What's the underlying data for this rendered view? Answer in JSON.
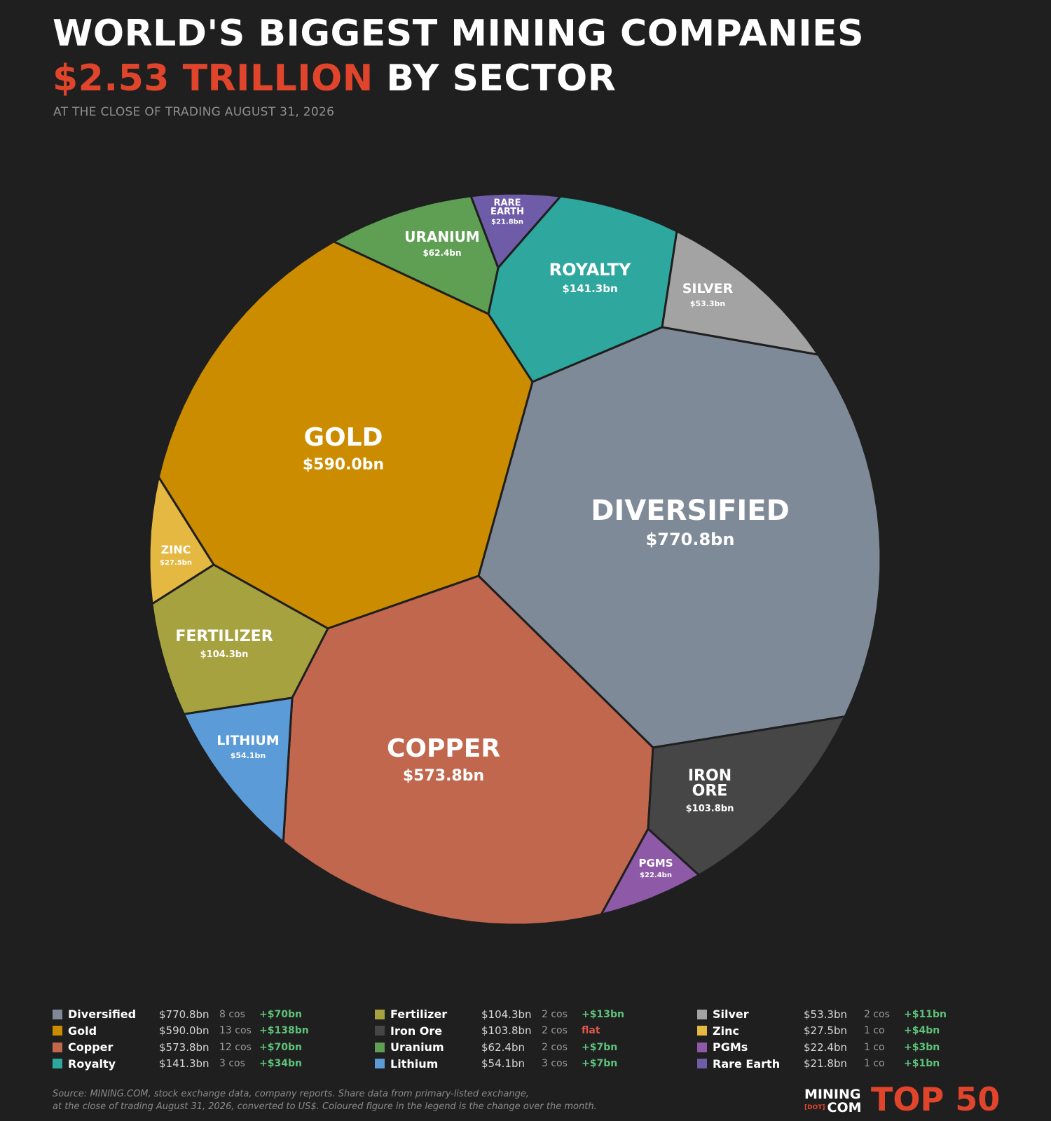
{
  "header": {
    "title_line1": "WORLD'S BIGGEST MINING COMPANIES",
    "title_accent": "$2.53 TRILLION",
    "title_rest": "BY SECTOR",
    "subtitle": "AT THE CLOSE OF TRADING AUGUST 31, 2026"
  },
  "chart_data": {
    "type": "voronoi-treemap",
    "title": "WORLD'S BIGGEST MINING COMPANIES $2.53 TRILLION BY SECTOR",
    "unit": "bn",
    "total": "$2.53 TRILLION",
    "sectors": [
      {
        "label": "DIVERSIFIED",
        "name": "Diversified",
        "value": 770.8,
        "value_label": "$770.8bn",
        "companies": "8 cos",
        "change": "+$70bn",
        "color": "#7f8a98"
      },
      {
        "label": "GOLD",
        "name": "Gold",
        "value": 590.0,
        "value_label": "$590.0bn",
        "companies": "13 cos",
        "change": "+$138bn",
        "color": "#cc8c00"
      },
      {
        "label": "COPPER",
        "name": "Copper",
        "value": 573.8,
        "value_label": "$573.8bn",
        "companies": "12 cos",
        "change": "+$70bn",
        "color": "#c0674e"
      },
      {
        "label": "ROYALTY",
        "name": "Royalty",
        "value": 141.3,
        "value_label": "$141.3bn",
        "companies": "3 cos",
        "change": "+$34bn",
        "color": "#2ea89e"
      },
      {
        "label": "FERTILIZER",
        "name": "Fertilizer",
        "value": 104.3,
        "value_label": "$104.3bn",
        "companies": "2 cos",
        "change": "+$13bn",
        "color": "#a6a23f"
      },
      {
        "label": "IRON ORE",
        "name": "Iron Ore",
        "value": 103.8,
        "value_label": "$103.8bn",
        "companies": "2 cos",
        "change": "flat",
        "color": "#464646"
      },
      {
        "label": "URANIUM",
        "name": "Uranium",
        "value": 62.4,
        "value_label": "$62.4bn",
        "companies": "2 cos",
        "change": "+$7bn",
        "color": "#5e9f53"
      },
      {
        "label": "LITHIUM",
        "name": "Lithium",
        "value": 54.1,
        "value_label": "$54.1bn",
        "companies": "3 cos",
        "change": "+$7bn",
        "color": "#5b9bd8"
      },
      {
        "label": "SILVER",
        "name": "Silver",
        "value": 53.3,
        "value_label": "$53.3bn",
        "companies": "2 cos",
        "change": "+$11bn",
        "color": "#a3a3a3"
      },
      {
        "label": "ZINC",
        "name": "Zinc",
        "value": 27.5,
        "value_label": "$27.5bn",
        "companies": "1 co",
        "change": "+$4bn",
        "color": "#e4b841"
      },
      {
        "label": "PGMS",
        "name": "PGMs",
        "value": 22.4,
        "value_label": "$22.4bn",
        "companies": "1 co",
        "change": "+$3bn",
        "color": "#8e5aa8"
      },
      {
        "label": "RARE EARTH",
        "name": "Rare Earth",
        "value": 21.8,
        "value_label": "$21.8bn",
        "companies": "1 co",
        "change": "+$1bn",
        "color": "#6e5ca8"
      }
    ]
  },
  "legend_columns": [
    [
      "DIVERSIFIED",
      "GOLD",
      "COPPER",
      "ROYALTY"
    ],
    [
      "FERTILIZER",
      "IRON ORE",
      "URANIUM",
      "LITHIUM"
    ],
    [
      "SILVER",
      "ZINC",
      "PGMS",
      "RARE EARTH"
    ]
  ],
  "footer": {
    "source_line1": "Source: MINING.COM, stock exchange data, company reports. Share data from primary-listed exchange,",
    "source_line2": "at the close of trading August 31, 2026, converted to US$. Coloured figure in the legend is the change over the month.",
    "brand_top": "MINING",
    "brand_dot": "[DOT]",
    "brand_bottom": "COM",
    "top50": "TOP 50"
  }
}
